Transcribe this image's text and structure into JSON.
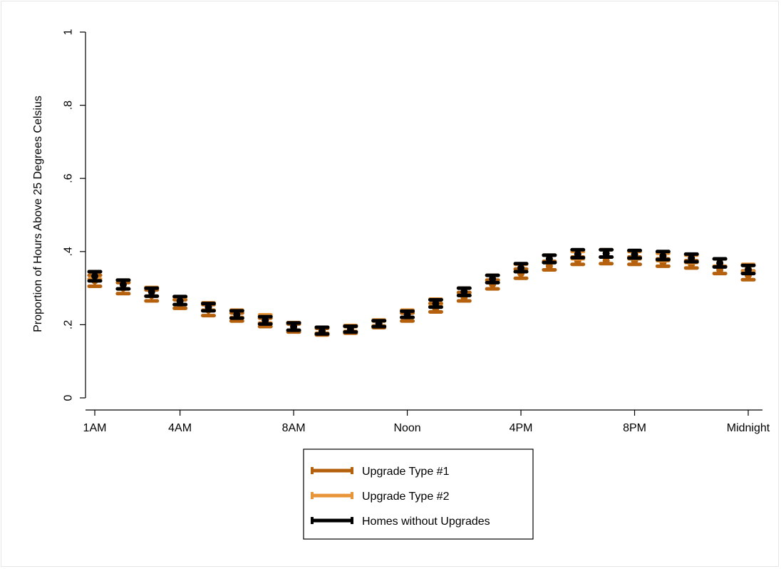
{
  "chart_data": {
    "type": "scatter",
    "title": "",
    "xlabel": "",
    "ylabel": "Proportion of Hours Above 25 Degrees Celsius",
    "ylim": [
      0,
      1
    ],
    "y_ticks": [
      {
        "value": 0,
        "label": "0"
      },
      {
        "value": 0.2,
        "label": ".2"
      },
      {
        "value": 0.4,
        "label": ".4"
      },
      {
        "value": 0.6,
        "label": ".6"
      },
      {
        "value": 0.8,
        "label": ".8"
      },
      {
        "value": 1,
        "label": "1"
      }
    ],
    "x": [
      1,
      2,
      3,
      4,
      5,
      6,
      7,
      8,
      9,
      10,
      11,
      12,
      13,
      14,
      15,
      16,
      17,
      18,
      19,
      20,
      21,
      22,
      23,
      24
    ],
    "xlim": [
      1,
      24
    ],
    "x_ticks": [
      {
        "value": 1,
        "label": "1AM"
      },
      {
        "value": 4,
        "label": "4AM"
      },
      {
        "value": 8,
        "label": "8AM"
      },
      {
        "value": 12,
        "label": "Noon"
      },
      {
        "value": 16,
        "label": "4PM"
      },
      {
        "value": 20,
        "label": "8PM"
      },
      {
        "value": 24,
        "label": "Midnight"
      }
    ],
    "grid": false,
    "legend_position": "bottom",
    "series": [
      {
        "name": "Upgrade Type #1",
        "color": "#b5600c",
        "values": [
          0.32,
          0.3,
          0.28,
          0.255,
          0.24,
          0.22,
          0.205,
          0.19,
          0.18,
          0.185,
          0.2,
          0.22,
          0.245,
          0.275,
          0.31,
          0.34,
          0.36,
          0.375,
          0.375,
          0.375,
          0.37,
          0.365,
          0.35,
          0.335
        ],
        "lower": [
          0.305,
          0.285,
          0.265,
          0.245,
          0.225,
          0.21,
          0.195,
          0.18,
          0.172,
          0.177,
          0.192,
          0.21,
          0.235,
          0.265,
          0.298,
          0.327,
          0.35,
          0.365,
          0.367,
          0.365,
          0.36,
          0.355,
          0.34,
          0.323
        ],
        "upper": [
          0.335,
          0.315,
          0.295,
          0.268,
          0.255,
          0.232,
          0.218,
          0.202,
          0.19,
          0.195,
          0.21,
          0.232,
          0.258,
          0.288,
          0.322,
          0.352,
          0.373,
          0.385,
          0.385,
          0.385,
          0.38,
          0.375,
          0.36,
          0.347
        ]
      },
      {
        "name": "Upgrade Type #2",
        "color": "#e8953a",
        "values": [
          0.335,
          0.31,
          0.29,
          0.265,
          0.25,
          0.23,
          0.215,
          0.195,
          0.185,
          0.19,
          0.205,
          0.23,
          0.26,
          0.29,
          0.325,
          0.355,
          0.38,
          0.39,
          0.395,
          0.39,
          0.385,
          0.38,
          0.37,
          0.355
        ],
        "lower": [
          0.325,
          0.298,
          0.278,
          0.255,
          0.24,
          0.22,
          0.205,
          0.185,
          0.177,
          0.182,
          0.197,
          0.22,
          0.25,
          0.28,
          0.315,
          0.345,
          0.37,
          0.38,
          0.385,
          0.38,
          0.375,
          0.37,
          0.36,
          0.345
        ],
        "upper": [
          0.345,
          0.322,
          0.302,
          0.275,
          0.26,
          0.24,
          0.227,
          0.206,
          0.193,
          0.198,
          0.213,
          0.24,
          0.27,
          0.3,
          0.335,
          0.365,
          0.39,
          0.4,
          0.405,
          0.4,
          0.395,
          0.39,
          0.38,
          0.365
        ]
      },
      {
        "name": "Homes without Upgrades",
        "color": "#000000",
        "values": [
          0.333,
          0.31,
          0.29,
          0.265,
          0.248,
          0.228,
          0.212,
          0.195,
          0.183,
          0.188,
          0.203,
          0.228,
          0.258,
          0.29,
          0.325,
          0.355,
          0.38,
          0.393,
          0.395,
          0.392,
          0.388,
          0.382,
          0.368,
          0.35
        ],
        "lower": [
          0.32,
          0.298,
          0.278,
          0.255,
          0.238,
          0.218,
          0.202,
          0.185,
          0.175,
          0.18,
          0.195,
          0.22,
          0.248,
          0.28,
          0.315,
          0.345,
          0.37,
          0.383,
          0.385,
          0.382,
          0.378,
          0.372,
          0.358,
          0.34
        ],
        "upper": [
          0.345,
          0.322,
          0.3,
          0.277,
          0.258,
          0.238,
          0.222,
          0.205,
          0.193,
          0.196,
          0.211,
          0.237,
          0.268,
          0.3,
          0.335,
          0.367,
          0.39,
          0.405,
          0.405,
          0.403,
          0.4,
          0.393,
          0.38,
          0.362
        ]
      }
    ]
  }
}
